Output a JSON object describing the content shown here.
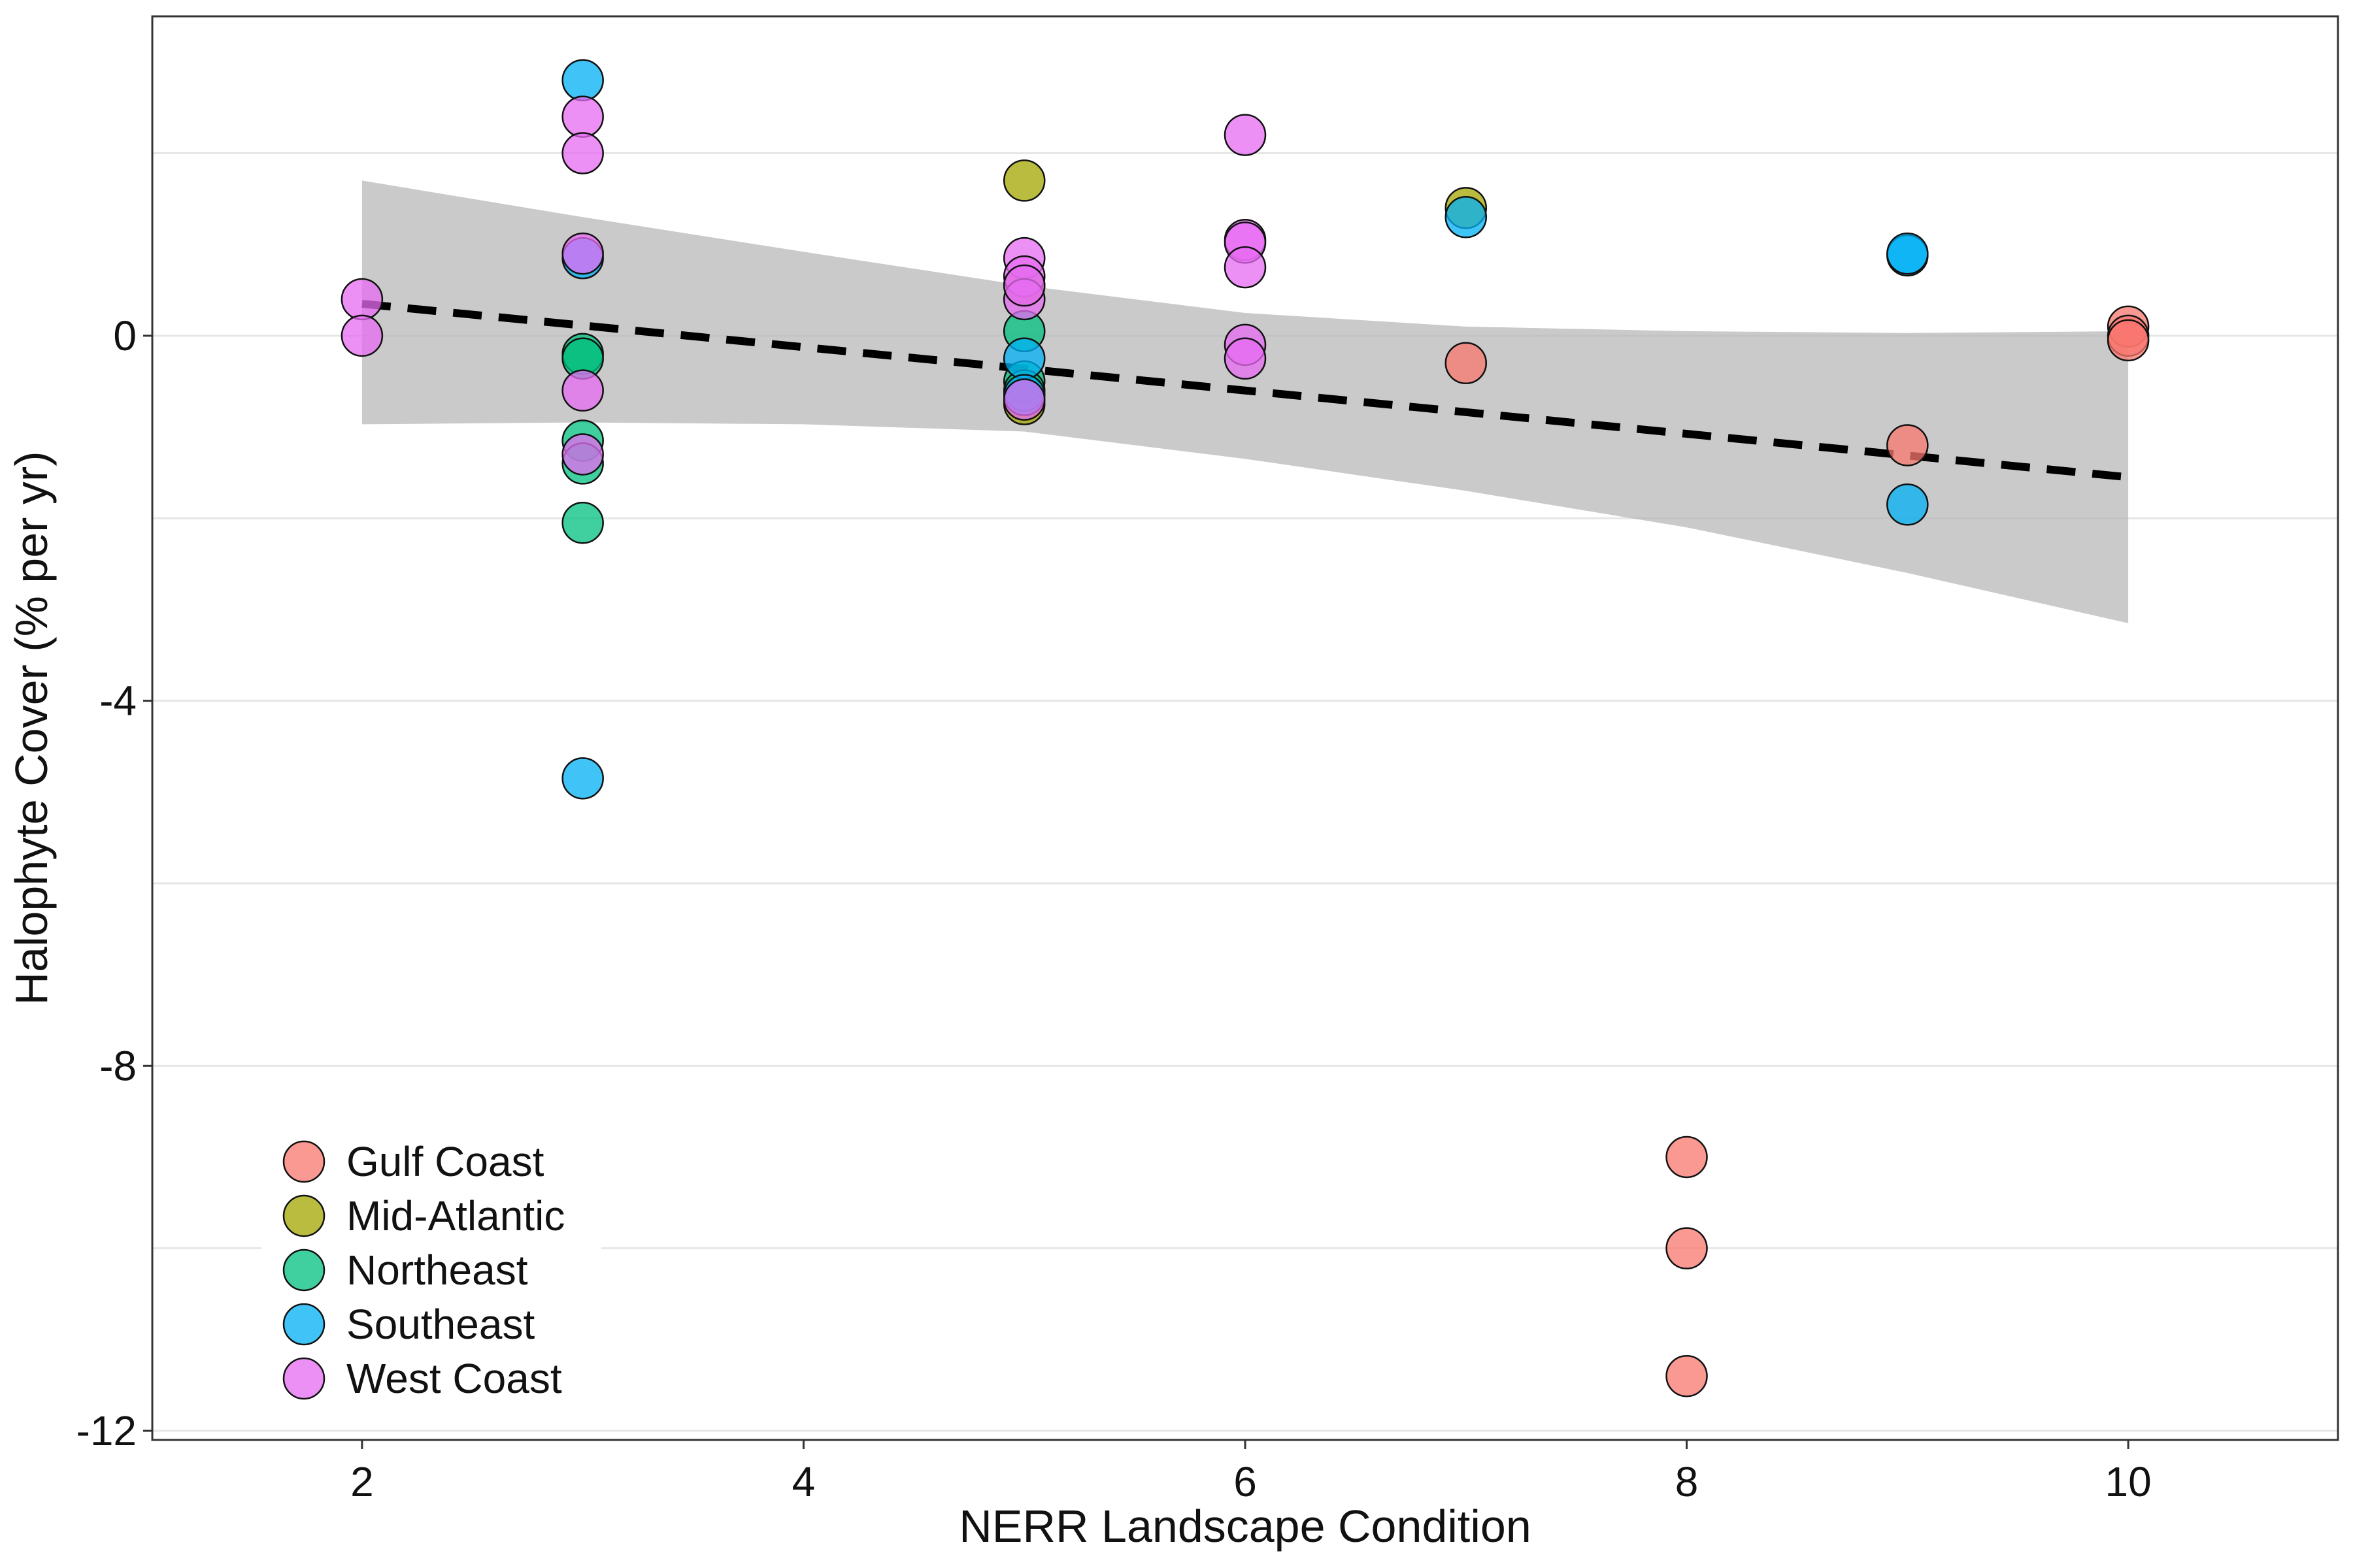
{
  "chart_data": {
    "type": "scatter",
    "xlabel": "NERR Landscape Condition",
    "ylabel": "Halophyte Cover (% per yr)",
    "xlim": [
      1.05,
      10.95
    ],
    "ylim": [
      -12.1,
      3.5
    ],
    "x_ticks": [
      2,
      4,
      6,
      8,
      10
    ],
    "y_ticks": [
      0,
      -4,
      -8,
      -12
    ],
    "y_gridlines": [
      2,
      0,
      -2,
      -4,
      -6,
      -8,
      -10,
      -12
    ],
    "grid": "horizontal",
    "legend_position": "bottom-left",
    "colors": {
      "Gulf Coast": "#F8766D",
      "Mid-Atlantic": "#A3A500",
      "Northeast": "#00BF7D",
      "Southeast": "#00B0F6",
      "West Coast": "#E76BF3",
      "ribbon": "#b3b3b3",
      "trend": "#000000"
    },
    "series": [
      {
        "name": "Gulf Coast",
        "points": [
          [
            8,
            -9.0
          ],
          [
            8,
            -10.0
          ],
          [
            8,
            -11.4
          ],
          [
            7,
            -0.3
          ],
          [
            9,
            -1.2
          ],
          [
            10,
            0.1
          ],
          [
            10,
            0.0
          ],
          [
            10,
            -0.05
          ]
        ]
      },
      {
        "name": "Mid-Atlantic",
        "points": [
          [
            5,
            1.7
          ],
          [
            5,
            -0.75
          ],
          [
            7,
            1.4
          ],
          [
            5,
            0.55
          ]
        ]
      },
      {
        "name": "Northeast",
        "points": [
          [
            3,
            -0.2
          ],
          [
            3,
            -0.25
          ],
          [
            3,
            -1.15
          ],
          [
            3,
            -1.4
          ],
          [
            3,
            -2.05
          ],
          [
            5,
            0.05
          ],
          [
            5,
            -0.5
          ],
          [
            5,
            -0.6
          ]
        ]
      },
      {
        "name": "Southeast",
        "points": [
          [
            3,
            2.8
          ],
          [
            3,
            0.85
          ],
          [
            3,
            -4.85
          ],
          [
            5,
            -0.25
          ],
          [
            5,
            -0.65
          ],
          [
            7,
            1.3
          ],
          [
            9,
            0.88
          ],
          [
            9,
            0.9
          ],
          [
            9,
            -1.85
          ]
        ]
      },
      {
        "name": "West Coast",
        "points": [
          [
            2,
            0.4
          ],
          [
            2,
            0.0
          ],
          [
            3,
            2.4
          ],
          [
            3,
            2.0
          ],
          [
            3,
            0.9
          ],
          [
            3,
            -0.6
          ],
          [
            3,
            -1.3
          ],
          [
            5,
            0.85
          ],
          [
            5,
            0.65
          ],
          [
            5,
            0.4
          ],
          [
            5,
            0.55
          ],
          [
            5,
            -0.7
          ],
          [
            6,
            2.2
          ],
          [
            6,
            1.05
          ],
          [
            6,
            1.02
          ],
          [
            6,
            0.75
          ],
          [
            6,
            -0.1
          ],
          [
            6,
            -0.25
          ]
        ]
      }
    ],
    "trend_line": {
      "x": [
        2,
        10
      ],
      "y": [
        0.35,
        -1.55
      ]
    },
    "confidence_band": {
      "x": [
        2,
        3,
        4,
        5,
        6,
        7,
        8,
        9,
        10
      ],
      "upper": [
        1.7,
        1.3,
        0.92,
        0.55,
        0.25,
        0.1,
        0.05,
        0.03,
        0.05
      ],
      "lower": [
        -0.97,
        -0.95,
        -0.97,
        -1.05,
        -1.35,
        -1.7,
        -2.1,
        -2.6,
        -3.15
      ]
    },
    "legend": [
      "Gulf Coast",
      "Mid-Atlantic",
      "Northeast",
      "Southeast",
      "West Coast"
    ]
  }
}
